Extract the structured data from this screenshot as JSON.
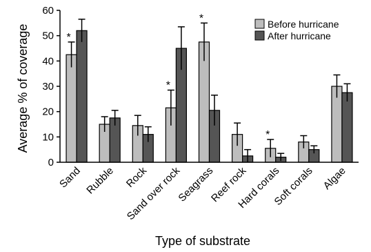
{
  "chart_data": {
    "type": "bar",
    "title": "",
    "xlabel": "Type of substrate",
    "ylabel": "Average % of coverage",
    "ylim": [
      0,
      60
    ],
    "yticks": [
      0,
      10,
      20,
      30,
      40,
      50,
      60
    ],
    "legend_position": "top-right",
    "grid": false,
    "categories": [
      "Sand",
      "Rubble",
      "Rock",
      "Sand over rock",
      "Seagrass",
      "Reef rock",
      "Hard corals",
      "Soft corals",
      "Algae"
    ],
    "series": [
      {
        "name": "Before hurricane",
        "color": "#bdbdbd",
        "values": [
          42.5,
          15,
          14.5,
          21.5,
          47.5,
          11,
          5.5,
          8,
          30
        ],
        "errors": [
          5,
          3,
          4,
          7,
          7.5,
          4.5,
          3.5,
          2.5,
          4.5
        ]
      },
      {
        "name": "After hurricane",
        "color": "#555555",
        "values": [
          52,
          17.5,
          11,
          45,
          20.5,
          2.5,
          2,
          5,
          27.5
        ],
        "errors": [
          4.5,
          3,
          3,
          8.5,
          6,
          2.5,
          1.5,
          1.5,
          3.5
        ]
      }
    ],
    "significance": [
      {
        "category_index": 0,
        "label": "*"
      },
      {
        "category_index": 3,
        "label": "*"
      },
      {
        "category_index": 4,
        "label": "*"
      },
      {
        "category_index": 6,
        "label": "*"
      }
    ]
  }
}
